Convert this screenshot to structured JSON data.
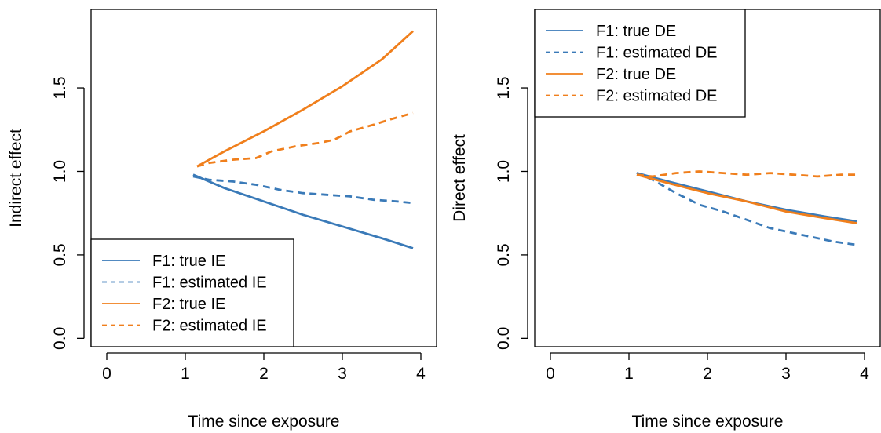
{
  "colors": {
    "F1": "#3a7ab8",
    "F2": "#f07f1c"
  },
  "chart_data": [
    {
      "type": "line",
      "xlabel": "Time since exposure",
      "ylabel": "Indirect effect",
      "xlim": [
        -0.2,
        4.2
      ],
      "ylim": [
        -0.05,
        1.97
      ],
      "xticks": [
        0,
        1,
        2,
        3,
        4
      ],
      "yticks": [
        0.0,
        0.5,
        1.0,
        1.5
      ],
      "xtick_labels": [
        "0",
        "1",
        "2",
        "3",
        "4"
      ],
      "ytick_labels": [
        "0.0",
        "0.5",
        "1.0",
        "1.5"
      ],
      "legend_position": "bottom-left",
      "grid": false,
      "series": [
        {
          "name": "F1: true IE",
          "color": "#3a7ab8",
          "dash": "solid",
          "x": [
            1.1,
            1.5,
            2.0,
            2.5,
            3.0,
            3.5,
            3.9
          ],
          "y": [
            0.98,
            0.9,
            0.82,
            0.74,
            0.67,
            0.6,
            0.54
          ]
        },
        {
          "name": "F1: estimated IE",
          "color": "#3a7ab8",
          "dash": "dashed",
          "x": [
            1.1,
            1.3,
            1.6,
            1.9,
            2.2,
            2.5,
            2.8,
            3.1,
            3.4,
            3.7,
            3.9
          ],
          "y": [
            0.97,
            0.95,
            0.94,
            0.92,
            0.89,
            0.87,
            0.86,
            0.85,
            0.83,
            0.82,
            0.81
          ]
        },
        {
          "name": "F2: true IE",
          "color": "#f07f1c",
          "dash": "solid",
          "x": [
            1.15,
            1.5,
            2.0,
            2.5,
            3.0,
            3.5,
            3.9
          ],
          "y": [
            1.03,
            1.12,
            1.24,
            1.37,
            1.51,
            1.67,
            1.84
          ]
        },
        {
          "name": "F2: estimated IE",
          "color": "#f07f1c",
          "dash": "dashed",
          "x": [
            1.15,
            1.3,
            1.6,
            1.9,
            2.1,
            2.4,
            2.7,
            2.9,
            3.1,
            3.4,
            3.6,
            3.9
          ],
          "y": [
            1.03,
            1.05,
            1.07,
            1.08,
            1.12,
            1.15,
            1.17,
            1.19,
            1.24,
            1.28,
            1.31,
            1.35
          ]
        }
      ]
    },
    {
      "type": "line",
      "xlabel": "Time since exposure",
      "ylabel": "Direct effect",
      "xlim": [
        -0.2,
        4.2
      ],
      "ylim": [
        -0.05,
        1.97
      ],
      "xticks": [
        0,
        1,
        2,
        3,
        4
      ],
      "yticks": [
        0.0,
        0.5,
        1.0,
        1.5
      ],
      "xtick_labels": [
        "0",
        "1",
        "2",
        "3",
        "4"
      ],
      "ytick_labels": [
        "0.0",
        "0.5",
        "1.0",
        "1.5"
      ],
      "legend_position": "top-left",
      "grid": false,
      "series": [
        {
          "name": "F1: true DE",
          "color": "#3a7ab8",
          "dash": "solid",
          "x": [
            1.1,
            1.5,
            2.0,
            2.5,
            3.0,
            3.5,
            3.9
          ],
          "y": [
            0.99,
            0.94,
            0.88,
            0.82,
            0.77,
            0.73,
            0.7
          ]
        },
        {
          "name": "F1: estimated DE",
          "color": "#3a7ab8",
          "dash": "dashed",
          "x": [
            1.1,
            1.3,
            1.6,
            1.9,
            2.2,
            2.5,
            2.8,
            3.0,
            3.3,
            3.6,
            3.9
          ],
          "y": [
            0.99,
            0.95,
            0.87,
            0.8,
            0.76,
            0.71,
            0.66,
            0.64,
            0.61,
            0.58,
            0.56
          ]
        },
        {
          "name": "F2: true DE",
          "color": "#f07f1c",
          "dash": "solid",
          "x": [
            1.1,
            1.5,
            2.0,
            2.5,
            3.0,
            3.5,
            3.9
          ],
          "y": [
            0.98,
            0.93,
            0.87,
            0.82,
            0.76,
            0.72,
            0.69
          ]
        },
        {
          "name": "F2: estimated DE",
          "color": "#f07f1c",
          "dash": "dashed",
          "x": [
            1.1,
            1.3,
            1.6,
            1.9,
            2.2,
            2.5,
            2.8,
            3.1,
            3.4,
            3.7,
            3.9
          ],
          "y": [
            0.98,
            0.97,
            0.99,
            1.0,
            0.99,
            0.98,
            0.99,
            0.98,
            0.97,
            0.98,
            0.98
          ]
        }
      ]
    }
  ]
}
